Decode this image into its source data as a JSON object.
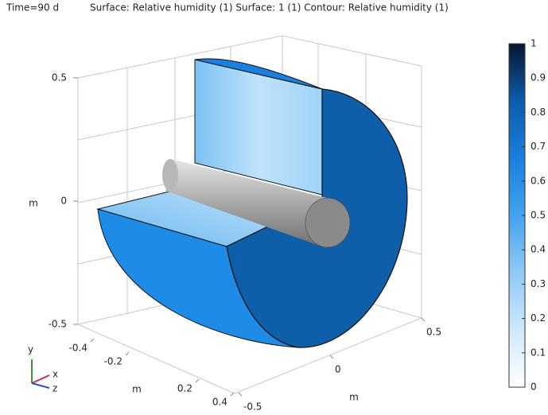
{
  "chart_data": {
    "type": "surface3d",
    "title": "Time=90 d",
    "subtitle": "Surface: Relative humidity (1)  Surface: 1 (1)  Contour: Relative humidity (1)",
    "zlabel": "m",
    "zlim": [
      -0.5,
      0.5
    ],
    "zticks": [
      -0.5,
      0,
      0.5
    ],
    "xlabel": "m",
    "xlim": [
      -0.4,
      0.4
    ],
    "xticks": [
      -0.4,
      -0.2,
      0.2,
      0.4
    ],
    "ylabel": "m",
    "ylim": [
      -0.5,
      0.5
    ],
    "yticks": [
      -0.5,
      0,
      0.5
    ],
    "triad": [
      "x",
      "y",
      "z"
    ],
    "clim": [
      0,
      1
    ],
    "cticks": [
      0,
      0.1,
      0.2,
      0.3,
      0.4,
      0.5,
      0.6,
      0.7,
      0.8,
      0.9,
      1
    ],
    "colormap": [
      "#ffffff",
      "#cfe8fb",
      "#8fcaf5",
      "#42a3ee",
      "#1a7fde",
      "#0c5cad",
      "#06172f"
    ]
  }
}
